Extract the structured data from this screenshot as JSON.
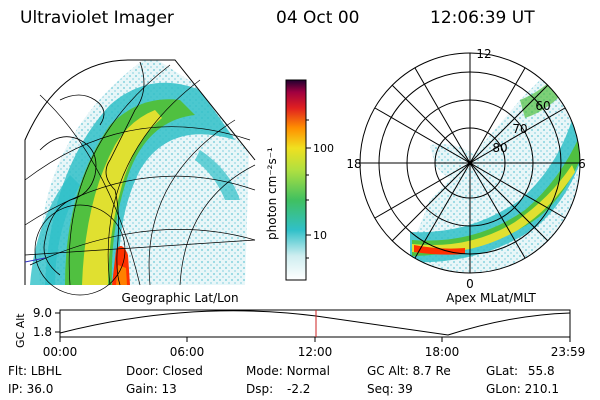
{
  "header": {
    "title": "Ultraviolet Imager",
    "date": "04 Oct 00",
    "time": "12:06:39 UT"
  },
  "colorbar": {
    "unit_label": "photon cm⁻²s⁻¹",
    "ticks": [
      "100",
      "10"
    ]
  },
  "left_panel": {
    "caption": "Geographic Lat/Lon"
  },
  "right_panel": {
    "caption": "Apex  MLat/MLT",
    "mlt_labels": {
      "top": "12",
      "left": "18",
      "right": "6",
      "bottom": "0"
    },
    "lat_labels": [
      "60",
      "70",
      "80"
    ]
  },
  "altitude_plot": {
    "ylabel": "GC Alt",
    "yticks": [
      "9.0",
      "1.8"
    ],
    "xticks": [
      "00:00",
      "06:00",
      "12:00",
      "18:00",
      "23:59"
    ],
    "marker_time": "12:06"
  },
  "info": {
    "row1": [
      {
        "label": "Flt:",
        "value": "LBHL"
      },
      {
        "label": "Door:",
        "value": "Closed"
      },
      {
        "label": "Mode:",
        "value": "Normal"
      },
      {
        "label": "GC Alt:",
        "value": "8.7 Re"
      },
      {
        "label": "GLat:",
        "value": "55.8"
      }
    ],
    "row2": [
      {
        "label": "IP:",
        "value": "36.0"
      },
      {
        "label": "Gain:",
        "value": "13"
      },
      {
        "label": "Dsp:",
        "value": "-2.2"
      },
      {
        "label": "Seq:",
        "value": "39"
      },
      {
        "label": "GLon:",
        "value": "210.1"
      }
    ]
  },
  "colors": {
    "marker": "#cc2222",
    "aurora_low": "#2cc0c0",
    "aurora_mid": "#50c040",
    "aurora_high": "#e0e030",
    "aurora_peak": "#ff3000"
  }
}
